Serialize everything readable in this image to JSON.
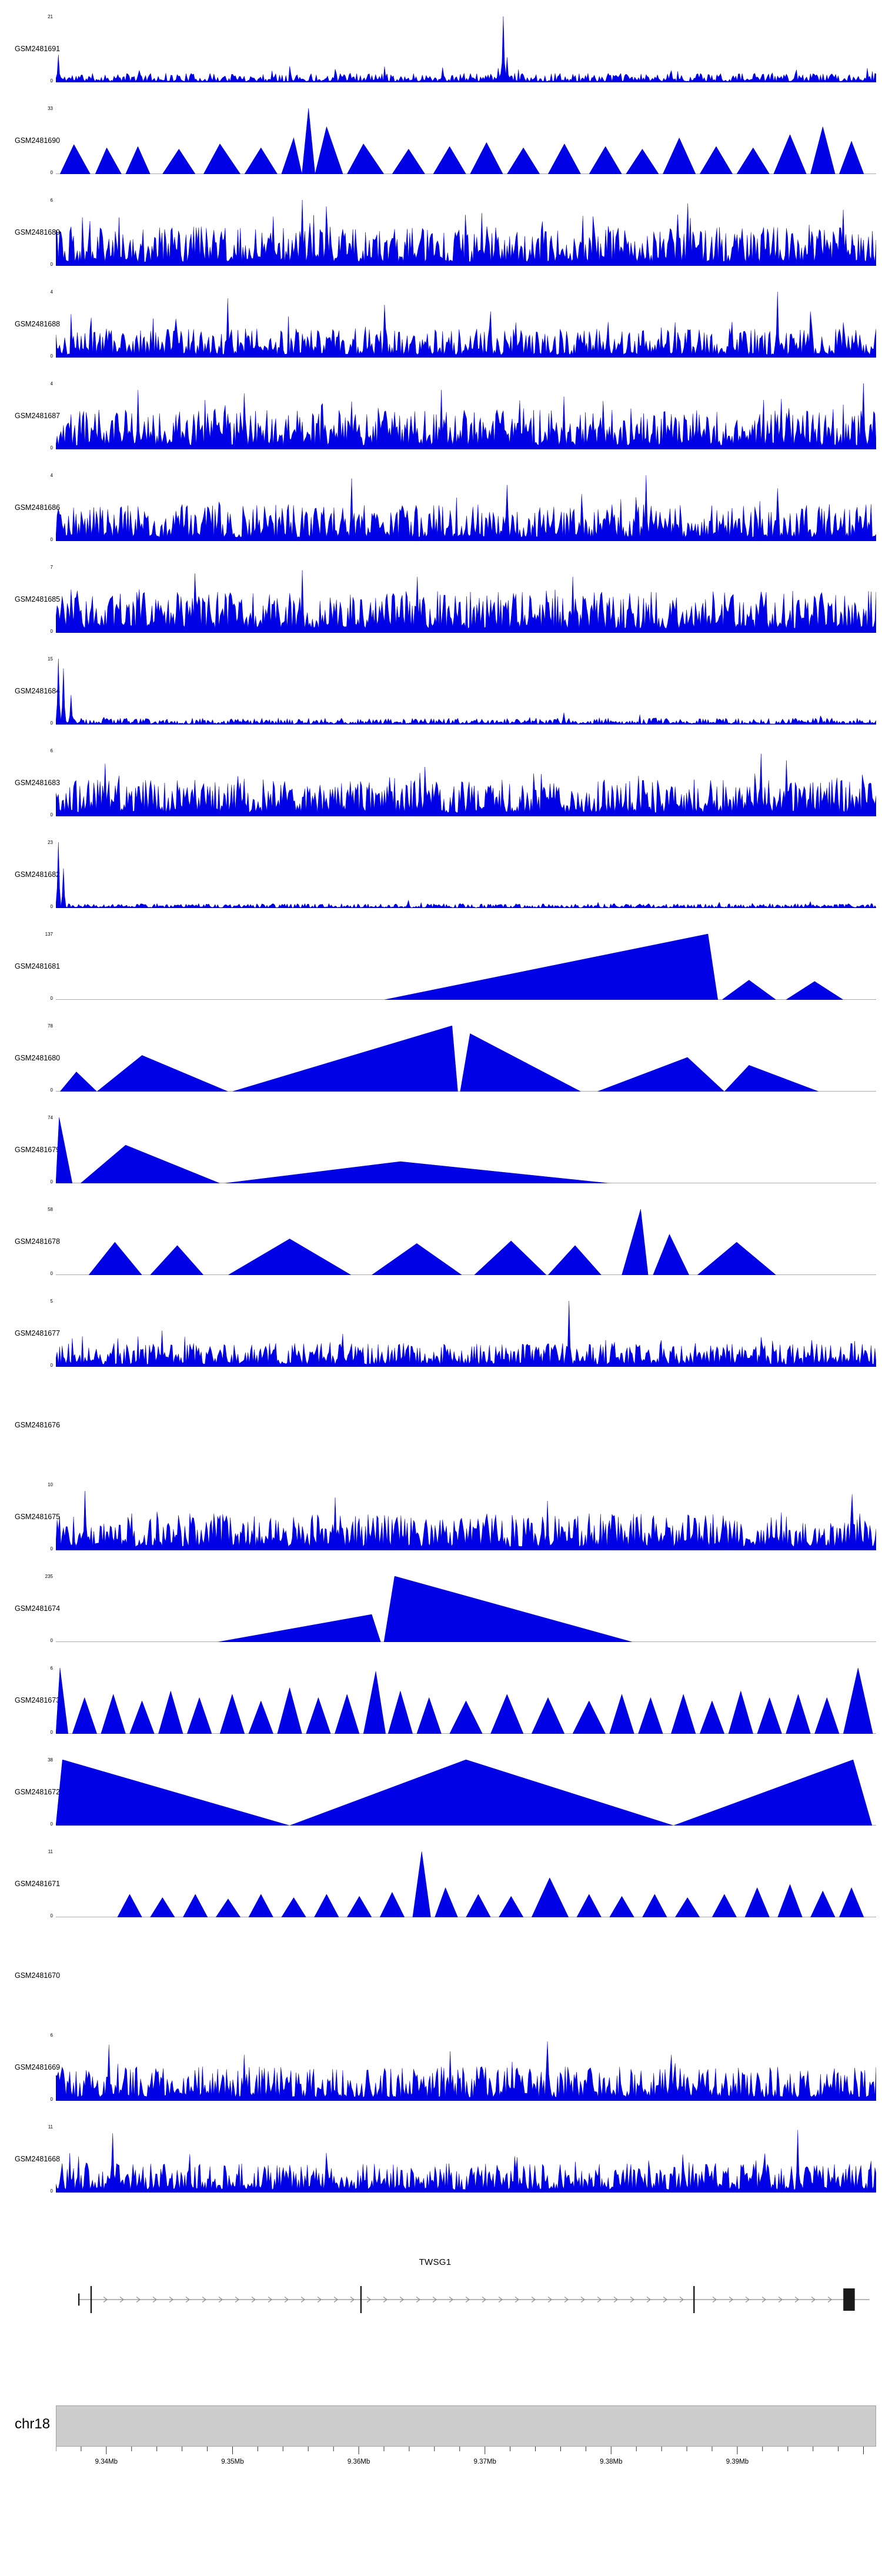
{
  "colors": {
    "signal": "#0101e6",
    "gene_line": "#8a8a8a",
    "exon": "#1a1a1a",
    "ideogram_fill": "#cdcdcd",
    "ideogram_stroke": "#a0a0a0",
    "axis_text": "#333333"
  },
  "chart_data": {
    "type": "area",
    "description": "Genome browser coverage tracks (GEO GSM samples) around TWSG1 on chr18",
    "region": {
      "chromosome": "chr18",
      "start_mb": 9.336,
      "end_mb": 9.401
    },
    "axis": {
      "major_ticks_mb": [
        9.34,
        9.35,
        9.36,
        9.37,
        9.38,
        9.39
      ],
      "tick_labels": [
        "9.34Mb",
        "9.35Mb",
        "9.36Mb",
        "9.37Mb",
        "9.38Mb",
        "9.39Mb"
      ],
      "minor_tick_step_mb": 0.002
    },
    "gene": {
      "name": "TWSG1",
      "line_start": 0.028,
      "line_end": 0.992,
      "exons": [
        {
          "x": 0.028,
          "h": 0.45
        },
        {
          "x": 0.043,
          "h": 1.0
        },
        {
          "x": 0.372,
          "h": 1.0
        },
        {
          "x": 0.778,
          "h": 1.0
        }
      ],
      "final_box": {
        "x": 0.96,
        "w": 0.014
      }
    },
    "tracks": [
      {
        "label": "GSM2481691",
        "ymax": 21,
        "ymin": 0,
        "style": "noise",
        "seed": 11,
        "base": 0.07,
        "burst": 0.02,
        "burstH": 0.22,
        "tall": [
          [
            0.003,
            0.42
          ],
          [
            0.545,
            1.0
          ],
          [
            0.55,
            0.38
          ],
          [
            0.34,
            0.2
          ],
          [
            0.75,
            0.18
          ]
        ]
      },
      {
        "label": "GSM2481690",
        "ymax": 33,
        "ymin": 0,
        "style": "peaks",
        "peaks": [
          [
            0.005,
            0.022,
            0.042,
            0.45
          ],
          [
            0.048,
            0.062,
            0.08,
            0.4
          ],
          [
            0.085,
            0.1,
            0.115,
            0.42
          ],
          [
            0.13,
            0.15,
            0.17,
            0.38
          ],
          [
            0.18,
            0.2,
            0.225,
            0.46
          ],
          [
            0.23,
            0.25,
            0.27,
            0.4
          ],
          [
            0.275,
            0.29,
            0.3,
            0.55
          ],
          [
            0.3,
            0.308,
            0.316,
            1.0
          ],
          [
            0.316,
            0.33,
            0.35,
            0.72
          ],
          [
            0.355,
            0.375,
            0.4,
            0.46
          ],
          [
            0.41,
            0.43,
            0.45,
            0.38
          ],
          [
            0.46,
            0.48,
            0.5,
            0.42
          ],
          [
            0.505,
            0.525,
            0.545,
            0.48
          ],
          [
            0.55,
            0.57,
            0.59,
            0.4
          ],
          [
            0.6,
            0.62,
            0.64,
            0.46
          ],
          [
            0.65,
            0.67,
            0.69,
            0.42
          ],
          [
            0.695,
            0.715,
            0.735,
            0.38
          ],
          [
            0.74,
            0.76,
            0.78,
            0.55
          ],
          [
            0.785,
            0.805,
            0.825,
            0.42
          ],
          [
            0.83,
            0.85,
            0.87,
            0.4
          ],
          [
            0.875,
            0.895,
            0.915,
            0.6
          ],
          [
            0.92,
            0.935,
            0.95,
            0.72
          ],
          [
            0.955,
            0.97,
            0.985,
            0.5
          ]
        ]
      },
      {
        "label": "GSM2481689",
        "ymax": 6,
        "ymin": 0,
        "style": "noise",
        "seed": 89,
        "base": 0.3,
        "burst": 0.05,
        "burstH": 0.65,
        "tall": [
          [
            0.3,
            1.0
          ],
          [
            0.33,
            0.9
          ],
          [
            0.52,
            0.8
          ],
          [
            0.77,
            0.95
          ],
          [
            0.96,
            0.85
          ]
        ]
      },
      {
        "label": "GSM2481688",
        "ymax": 4,
        "ymin": 0,
        "style": "noise",
        "seed": 88,
        "base": 0.22,
        "burst": 0.04,
        "burstH": 0.55,
        "tall": [
          [
            0.21,
            0.9
          ],
          [
            0.4,
            0.8
          ],
          [
            0.53,
            0.7
          ],
          [
            0.88,
            1.0
          ],
          [
            0.92,
            0.7
          ]
        ]
      },
      {
        "label": "GSM2481687",
        "ymax": 4,
        "ymin": 0,
        "style": "noise",
        "seed": 87,
        "base": 0.3,
        "burst": 0.06,
        "burstH": 0.65,
        "tall": [
          [
            0.1,
            0.9
          ],
          [
            0.23,
            0.85
          ],
          [
            0.47,
            0.9
          ],
          [
            0.62,
            0.8
          ],
          [
            0.985,
            1.0
          ]
        ]
      },
      {
        "label": "GSM2481686",
        "ymax": 4,
        "ymin": 0,
        "style": "noise",
        "seed": 86,
        "base": 0.28,
        "burst": 0.05,
        "burstH": 0.6,
        "tall": [
          [
            0.36,
            0.95
          ],
          [
            0.55,
            0.85
          ],
          [
            0.72,
            1.0
          ],
          [
            0.88,
            0.8
          ]
        ]
      },
      {
        "label": "GSM2481685",
        "ymax": 7,
        "ymin": 0,
        "style": "noise",
        "seed": 85,
        "base": 0.32,
        "burst": 0.05,
        "burstH": 0.55,
        "tall": [
          [
            0.17,
            0.9
          ],
          [
            0.3,
            0.95
          ],
          [
            0.44,
            0.85
          ],
          [
            0.63,
            0.85
          ]
        ]
      },
      {
        "label": "GSM2481684",
        "ymax": 15,
        "ymin": 0,
        "style": "noise",
        "seed": 84,
        "base": 0.05,
        "burst": 0.02,
        "burstH": 0.14,
        "tall": [
          [
            0.003,
            1.0
          ],
          [
            0.009,
            0.85
          ],
          [
            0.018,
            0.45
          ],
          [
            0.62,
            0.18
          ]
        ]
      },
      {
        "label": "GSM2481683",
        "ymax": 6,
        "ymin": 0,
        "style": "noise",
        "seed": 83,
        "base": 0.28,
        "burst": 0.05,
        "burstH": 0.55,
        "tall": [
          [
            0.06,
            0.8
          ],
          [
            0.45,
            0.75
          ],
          [
            0.86,
            0.95
          ],
          [
            0.89,
            0.85
          ]
        ]
      },
      {
        "label": "GSM2481682",
        "ymax": 23,
        "ymin": 0,
        "style": "noise",
        "seed": 82,
        "base": 0.035,
        "burst": 0.012,
        "burstH": 0.1,
        "tall": [
          [
            0.003,
            1.0
          ],
          [
            0.01,
            0.6
          ],
          [
            0.43,
            0.12
          ],
          [
            0.92,
            0.1
          ]
        ]
      },
      {
        "label": "GSM2481681",
        "ymax": 137,
        "ymin": 0,
        "style": "peaks",
        "peaks": [
          [
            0.4,
            0.795,
            0.807,
            1.0
          ],
          [
            0.812,
            0.845,
            0.878,
            0.3
          ],
          [
            0.89,
            0.925,
            0.96,
            0.28
          ]
        ]
      },
      {
        "label": "GSM2481680",
        "ymax": 78,
        "ymin": 0,
        "style": "peaks",
        "peaks": [
          [
            0.005,
            0.025,
            0.05,
            0.3
          ],
          [
            0.05,
            0.105,
            0.21,
            0.55
          ],
          [
            0.215,
            0.483,
            0.49,
            1.0
          ],
          [
            0.493,
            0.505,
            0.64,
            0.88
          ],
          [
            0.66,
            0.77,
            0.815,
            0.52
          ],
          [
            0.815,
            0.845,
            0.93,
            0.4
          ]
        ]
      },
      {
        "label": "GSM2481679",
        "ymax": 74,
        "ymin": 0,
        "style": "peaks",
        "peaks": [
          [
            0.0,
            0.004,
            0.02,
            1.0
          ],
          [
            0.03,
            0.085,
            0.2,
            0.58
          ],
          [
            0.205,
            0.42,
            0.675,
            0.33
          ]
        ]
      },
      {
        "label": "GSM2481678",
        "ymax": 58,
        "ymin": 0,
        "style": "peaks",
        "peaks": [
          [
            0.04,
            0.072,
            0.105,
            0.5
          ],
          [
            0.115,
            0.148,
            0.18,
            0.45
          ],
          [
            0.21,
            0.285,
            0.36,
            0.55
          ],
          [
            0.385,
            0.44,
            0.495,
            0.48
          ],
          [
            0.51,
            0.555,
            0.598,
            0.52
          ],
          [
            0.6,
            0.633,
            0.665,
            0.45
          ],
          [
            0.69,
            0.713,
            0.722,
            1.0
          ],
          [
            0.728,
            0.748,
            0.772,
            0.62
          ],
          [
            0.782,
            0.83,
            0.878,
            0.5
          ]
        ]
      },
      {
        "label": "GSM2481677",
        "ymax": 5,
        "ymin": 0,
        "style": "noise",
        "seed": 77,
        "base": 0.18,
        "burst": 0.03,
        "burstH": 0.4,
        "tall": [
          [
            0.13,
            0.55
          ],
          [
            0.35,
            0.5
          ],
          [
            0.625,
            1.0
          ],
          [
            0.86,
            0.45
          ]
        ]
      },
      {
        "label": "GSM2481676",
        "ymax": null,
        "ymin": null,
        "style": "empty"
      },
      {
        "label": "GSM2481675",
        "ymax": 10,
        "ymin": 0,
        "style": "noise",
        "seed": 75,
        "base": 0.28,
        "burst": 0.04,
        "burstH": 0.5,
        "tall": [
          [
            0.035,
            0.9
          ],
          [
            0.34,
            0.8
          ],
          [
            0.6,
            0.75
          ],
          [
            0.97,
            0.85
          ]
        ]
      },
      {
        "label": "GSM2481674",
        "ymax": 235,
        "ymin": 0,
        "style": "peaks",
        "peaks": [
          [
            0.197,
            0.385,
            0.396,
            0.42
          ],
          [
            0.4,
            0.413,
            0.703,
            1.0
          ]
        ]
      },
      {
        "label": "GSM2481673",
        "ymax": 6,
        "ymin": 0,
        "style": "peaks",
        "peaks": [
          [
            0.0,
            0.005,
            0.015,
            1.0
          ],
          [
            0.02,
            0.035,
            0.05,
            0.55
          ],
          [
            0.055,
            0.07,
            0.085,
            0.6
          ],
          [
            0.09,
            0.105,
            0.12,
            0.5
          ],
          [
            0.125,
            0.14,
            0.155,
            0.65
          ],
          [
            0.16,
            0.175,
            0.19,
            0.55
          ],
          [
            0.2,
            0.215,
            0.23,
            0.6
          ],
          [
            0.235,
            0.25,
            0.265,
            0.5
          ],
          [
            0.27,
            0.285,
            0.3,
            0.7
          ],
          [
            0.305,
            0.32,
            0.335,
            0.55
          ],
          [
            0.34,
            0.355,
            0.37,
            0.6
          ],
          [
            0.375,
            0.39,
            0.402,
            0.95
          ],
          [
            0.405,
            0.42,
            0.435,
            0.65
          ],
          [
            0.44,
            0.455,
            0.47,
            0.55
          ],
          [
            0.48,
            0.5,
            0.52,
            0.5
          ],
          [
            0.53,
            0.55,
            0.57,
            0.6
          ],
          [
            0.58,
            0.6,
            0.62,
            0.55
          ],
          [
            0.63,
            0.65,
            0.67,
            0.5
          ],
          [
            0.675,
            0.69,
            0.705,
            0.6
          ],
          [
            0.71,
            0.725,
            0.74,
            0.55
          ],
          [
            0.75,
            0.765,
            0.78,
            0.6
          ],
          [
            0.785,
            0.8,
            0.815,
            0.5
          ],
          [
            0.82,
            0.835,
            0.85,
            0.65
          ],
          [
            0.855,
            0.87,
            0.885,
            0.55
          ],
          [
            0.89,
            0.905,
            0.92,
            0.6
          ],
          [
            0.925,
            0.94,
            0.955,
            0.55
          ],
          [
            0.96,
            0.978,
            0.996,
            1.0
          ]
        ]
      },
      {
        "label": "GSM2481672",
        "ymax": 38,
        "ymin": 0,
        "style": "peaks",
        "peaks": [
          [
            0.0,
            0.008,
            0.285,
            1.0
          ],
          [
            0.285,
            0.5,
            0.753,
            1.0
          ],
          [
            0.753,
            0.972,
            0.995,
            1.0
          ]
        ]
      },
      {
        "label": "GSM2481671",
        "ymax": 11,
        "ymin": 0,
        "style": "peaks",
        "peaks": [
          [
            0.075,
            0.09,
            0.105,
            0.35
          ],
          [
            0.115,
            0.13,
            0.145,
            0.3
          ],
          [
            0.155,
            0.17,
            0.185,
            0.35
          ],
          [
            0.195,
            0.21,
            0.225,
            0.28
          ],
          [
            0.235,
            0.25,
            0.265,
            0.35
          ],
          [
            0.275,
            0.29,
            0.305,
            0.3
          ],
          [
            0.315,
            0.33,
            0.345,
            0.35
          ],
          [
            0.355,
            0.37,
            0.385,
            0.32
          ],
          [
            0.395,
            0.41,
            0.425,
            0.38
          ],
          [
            0.435,
            0.446,
            0.457,
            1.0
          ],
          [
            0.462,
            0.475,
            0.49,
            0.45
          ],
          [
            0.5,
            0.515,
            0.53,
            0.35
          ],
          [
            0.54,
            0.555,
            0.57,
            0.32
          ],
          [
            0.58,
            0.602,
            0.625,
            0.6
          ],
          [
            0.635,
            0.65,
            0.665,
            0.35
          ],
          [
            0.675,
            0.69,
            0.705,
            0.32
          ],
          [
            0.715,
            0.73,
            0.745,
            0.35
          ],
          [
            0.755,
            0.77,
            0.785,
            0.3
          ],
          [
            0.8,
            0.815,
            0.83,
            0.35
          ],
          [
            0.84,
            0.855,
            0.87,
            0.45
          ],
          [
            0.88,
            0.895,
            0.91,
            0.5
          ],
          [
            0.92,
            0.935,
            0.95,
            0.4
          ],
          [
            0.955,
            0.97,
            0.985,
            0.45
          ]
        ]
      },
      {
        "label": "GSM2481670",
        "ymax": null,
        "ymin": null,
        "style": "empty"
      },
      {
        "label": "GSM2481669",
        "ymax": 6,
        "ymin": 0,
        "style": "noise",
        "seed": 69,
        "base": 0.26,
        "burst": 0.04,
        "burstH": 0.5,
        "tall": [
          [
            0.065,
            0.85
          ],
          [
            0.23,
            0.7
          ],
          [
            0.48,
            0.75
          ],
          [
            0.6,
            0.9
          ],
          [
            0.75,
            0.7
          ]
        ]
      },
      {
        "label": "GSM2481668",
        "ymax": 11,
        "ymin": 0,
        "style": "noise",
        "seed": 68,
        "base": 0.22,
        "burst": 0.03,
        "burstH": 0.5,
        "tall": [
          [
            0.07,
            0.9
          ],
          [
            0.33,
            0.6
          ],
          [
            0.56,
            0.55
          ],
          [
            0.905,
            0.95
          ]
        ]
      }
    ]
  }
}
